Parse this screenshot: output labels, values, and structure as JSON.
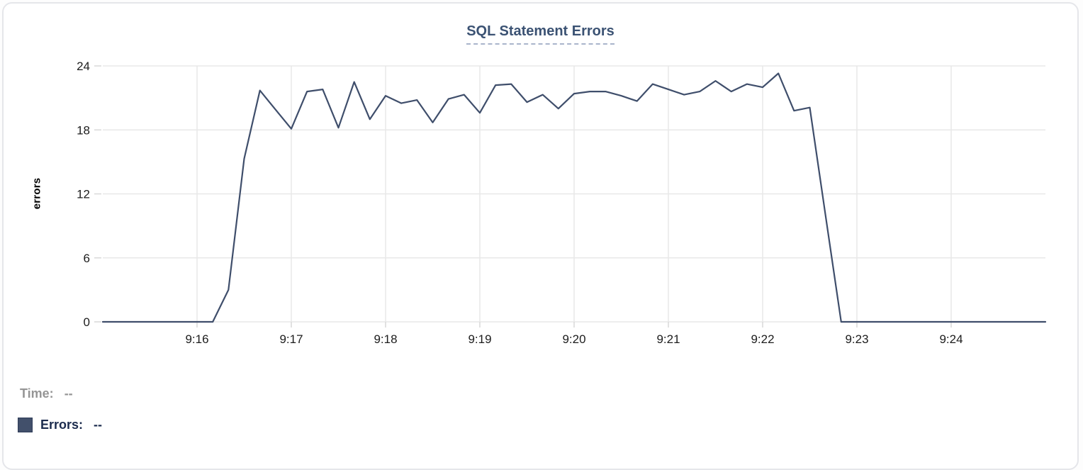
{
  "chart_data": {
    "type": "line",
    "title": "SQL Statement Errors",
    "xlabel": "",
    "ylabel": "errors",
    "series_name": "Errors",
    "ylim": [
      0,
      24
    ],
    "yticks": [
      0,
      6,
      12,
      18,
      24
    ],
    "xticks": [
      "9:16",
      "9:17",
      "9:18",
      "9:19",
      "9:20",
      "9:21",
      "9:22",
      "9:23",
      "9:24"
    ],
    "x_range": [
      "9:15:00",
      "9:25:00"
    ],
    "interval_seconds": 10,
    "grid": true,
    "legend_position": "bottom-left",
    "x": [
      "9:15:00",
      "9:15:10",
      "9:15:20",
      "9:15:30",
      "9:15:40",
      "9:15:50",
      "9:16:00",
      "9:16:10",
      "9:16:20",
      "9:16:30",
      "9:16:40",
      "9:16:50",
      "9:17:00",
      "9:17:10",
      "9:17:20",
      "9:17:30",
      "9:17:40",
      "9:17:50",
      "9:18:00",
      "9:18:10",
      "9:18:20",
      "9:18:30",
      "9:18:40",
      "9:18:50",
      "9:19:00",
      "9:19:10",
      "9:19:20",
      "9:19:30",
      "9:19:40",
      "9:19:50",
      "9:20:00",
      "9:20:10",
      "9:20:20",
      "9:20:30",
      "9:20:40",
      "9:20:50",
      "9:21:00",
      "9:21:10",
      "9:21:20",
      "9:21:30",
      "9:21:40",
      "9:21:50",
      "9:22:00",
      "9:22:10",
      "9:22:20",
      "9:22:30",
      "9:22:40",
      "9:22:50",
      "9:23:00",
      "9:23:10",
      "9:23:20",
      "9:23:30",
      "9:23:40",
      "9:23:50",
      "9:24:00",
      "9:24:10",
      "9:24:20",
      "9:24:30",
      "9:24:40",
      "9:24:50",
      "9:25:00"
    ],
    "values": [
      0,
      0,
      0,
      0,
      0,
      0,
      0,
      0,
      3,
      15.3,
      21.7,
      19.9,
      18.1,
      21.6,
      21.8,
      18.2,
      22.5,
      19,
      21.2,
      20.5,
      20.8,
      18.7,
      20.9,
      21.3,
      19.6,
      22.2,
      22.3,
      20.6,
      21.3,
      20,
      21.4,
      21.6,
      21.6,
      21.2,
      20.7,
      22.3,
      21.8,
      21.3,
      21.6,
      22.6,
      21.6,
      22.3,
      22,
      23.3,
      19.8,
      20.1,
      10,
      0,
      0,
      0,
      0,
      0,
      0,
      0,
      0,
      0,
      0,
      0,
      0,
      0,
      0
    ]
  },
  "tooltip": {
    "time_label": "Time:",
    "time_value": "--",
    "errors_label": "Errors:",
    "errors_value": "--"
  },
  "colors": {
    "line": "#3f4e6b",
    "swatch": "#42506b",
    "title": "#3b5273",
    "title_underline": "#a9b4cb",
    "time_label_gray": "#959595",
    "errors_label_navy": "#1b2b4d",
    "grid": "#e8e8e8"
  }
}
